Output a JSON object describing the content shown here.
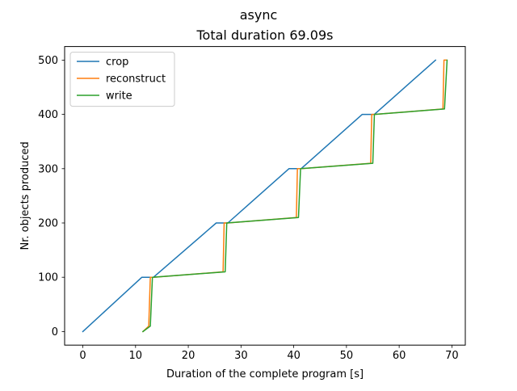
{
  "chart_data": {
    "type": "line",
    "suptitle": "async",
    "title": "Total duration 69.09s",
    "xlabel": "Duration of the complete program [s]",
    "ylabel": "Nr. objects produced",
    "xlim": [
      -3.4545,
      72.545
    ],
    "ylim": [
      -25,
      525
    ],
    "xticks": [
      0,
      10,
      20,
      30,
      40,
      50,
      60,
      70
    ],
    "yticks": [
      0,
      100,
      200,
      300,
      400,
      500
    ],
    "grid": false,
    "legend_position": "top-left",
    "series": [
      {
        "name": "crop",
        "color": "#1f77b4",
        "points": [
          [
            0,
            0
          ],
          [
            11.2,
            100
          ],
          [
            13.4,
            100
          ],
          [
            25.3,
            200
          ],
          [
            27.5,
            200
          ],
          [
            39.1,
            300
          ],
          [
            41.4,
            300
          ],
          [
            53.0,
            400
          ],
          [
            55.3,
            400
          ],
          [
            66.9,
            500
          ]
        ]
      },
      {
        "name": "reconstruct",
        "color": "#ff7f0e",
        "points": [
          [
            11.4,
            0
          ],
          [
            12.5,
            10
          ],
          [
            12.8,
            100
          ],
          [
            13.4,
            100
          ],
          [
            26.6,
            110
          ],
          [
            26.8,
            200
          ],
          [
            27.5,
            200
          ],
          [
            40.5,
            210
          ],
          [
            40.7,
            300
          ],
          [
            41.4,
            300
          ],
          [
            54.6,
            310
          ],
          [
            54.8,
            400
          ],
          [
            55.3,
            400
          ],
          [
            68.3,
            410
          ],
          [
            68.5,
            500
          ],
          [
            68.9,
            500
          ]
        ]
      },
      {
        "name": "write",
        "color": "#2ca02c",
        "points": [
          [
            11.4,
            0
          ],
          [
            12.8,
            10
          ],
          [
            13.2,
            100
          ],
          [
            27.0,
            110
          ],
          [
            27.3,
            200
          ],
          [
            40.9,
            210
          ],
          [
            41.3,
            300
          ],
          [
            55.0,
            310
          ],
          [
            55.3,
            400
          ],
          [
            68.6,
            410
          ],
          [
            69.09,
            500
          ]
        ]
      }
    ]
  }
}
